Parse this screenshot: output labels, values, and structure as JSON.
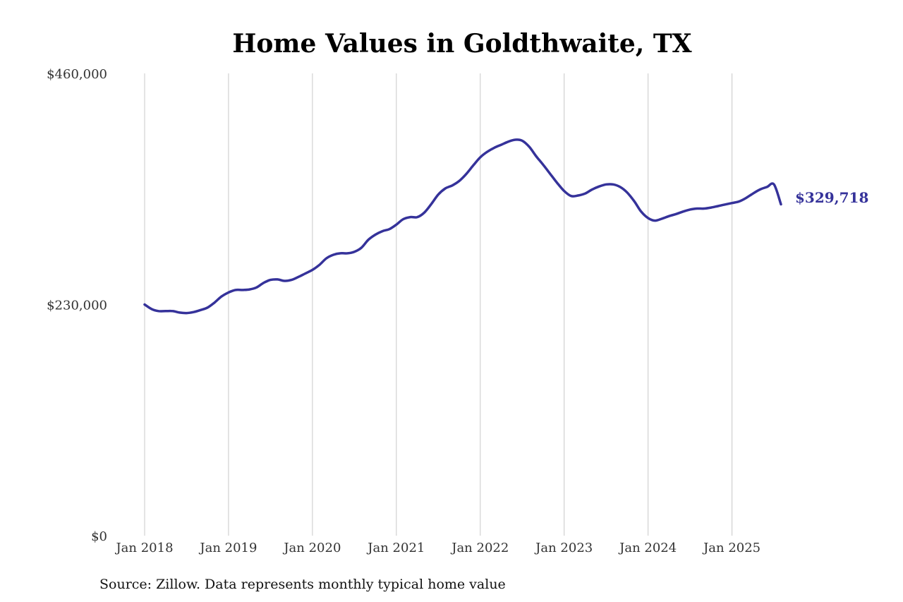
{
  "chart_data": {
    "type": "line",
    "title": "Home Values in Goldthwaite, TX",
    "xlabel": "",
    "ylabel": "",
    "x_ticks": [
      "Jan 2018",
      "Jan 2019",
      "Jan 2020",
      "Jan 2021",
      "Jan 2022",
      "Jan 2023",
      "Jan 2024",
      "Jan 2025"
    ],
    "y_ticks": [
      "$0",
      "$230,000",
      "$460,000"
    ],
    "ylim": [
      0,
      460000
    ],
    "xlim": [
      "2018-01",
      "2025-08"
    ],
    "grid": {
      "vertical": true,
      "horizontal": false
    },
    "line_color": "#35329a",
    "end_label": "$329,718",
    "series": [
      {
        "points": [
          [
            "2018-01",
            230000
          ],
          [
            "2018-02",
            225500
          ],
          [
            "2018-03",
            223500
          ],
          [
            "2018-04",
            223500
          ],
          [
            "2018-05",
            223500
          ],
          [
            "2018-06",
            222000
          ],
          [
            "2018-07",
            221500
          ],
          [
            "2018-08",
            222500
          ],
          [
            "2018-09",
            224500
          ],
          [
            "2018-10",
            227000
          ],
          [
            "2018-11",
            232000
          ],
          [
            "2018-12",
            238000
          ],
          [
            "2019-01",
            242000
          ],
          [
            "2019-02",
            244500
          ],
          [
            "2019-03",
            244500
          ],
          [
            "2019-04",
            245000
          ],
          [
            "2019-05",
            247000
          ],
          [
            "2019-06",
            251500
          ],
          [
            "2019-07",
            254500
          ],
          [
            "2019-08",
            255000
          ],
          [
            "2019-09",
            253500
          ],
          [
            "2019-10",
            254500
          ],
          [
            "2019-11",
            257500
          ],
          [
            "2019-12",
            261000
          ],
          [
            "2020-01",
            264500
          ],
          [
            "2020-02",
            269500
          ],
          [
            "2020-03",
            276000
          ],
          [
            "2020-04",
            279500
          ],
          [
            "2020-05",
            281000
          ],
          [
            "2020-06",
            281000
          ],
          [
            "2020-07",
            282500
          ],
          [
            "2020-08",
            286500
          ],
          [
            "2020-09",
            294500
          ],
          [
            "2020-10",
            299500
          ],
          [
            "2020-11",
            303000
          ],
          [
            "2020-12",
            305000
          ],
          [
            "2021-01",
            309500
          ],
          [
            "2021-02",
            315000
          ],
          [
            "2021-03",
            317000
          ],
          [
            "2021-04",
            317000
          ],
          [
            "2021-05",
            321500
          ],
          [
            "2021-06",
            330000
          ],
          [
            "2021-07",
            339500
          ],
          [
            "2021-08",
            345500
          ],
          [
            "2021-09",
            348500
          ],
          [
            "2021-10",
            353000
          ],
          [
            "2021-11",
            360000
          ],
          [
            "2021-12",
            368500
          ],
          [
            "2022-01",
            376500
          ],
          [
            "2022-02",
            382000
          ],
          [
            "2022-03",
            386000
          ],
          [
            "2022-04",
            389000
          ],
          [
            "2022-05",
            392000
          ],
          [
            "2022-06",
            394000
          ],
          [
            "2022-07",
            393000
          ],
          [
            "2022-08",
            387000
          ],
          [
            "2022-09",
            377500
          ],
          [
            "2022-10",
            369000
          ],
          [
            "2022-11",
            360000
          ],
          [
            "2022-12",
            351000
          ],
          [
            "2023-01",
            343000
          ],
          [
            "2023-02",
            338000
          ],
          [
            "2023-03",
            338500
          ],
          [
            "2023-04",
            340500
          ],
          [
            "2023-05",
            344500
          ],
          [
            "2023-06",
            347500
          ],
          [
            "2023-07",
            349500
          ],
          [
            "2023-08",
            349500
          ],
          [
            "2023-09",
            347000
          ],
          [
            "2023-10",
            341500
          ],
          [
            "2023-11",
            333000
          ],
          [
            "2023-12",
            322500
          ],
          [
            "2024-01",
            316000
          ],
          [
            "2024-02",
            313500
          ],
          [
            "2024-03",
            315500
          ],
          [
            "2024-04",
            318000
          ],
          [
            "2024-05",
            320000
          ],
          [
            "2024-06",
            322500
          ],
          [
            "2024-07",
            324500
          ],
          [
            "2024-08",
            325500
          ],
          [
            "2024-09",
            325500
          ],
          [
            "2024-10",
            326500
          ],
          [
            "2024-11",
            328000
          ],
          [
            "2024-12",
            329500
          ],
          [
            "2025-01",
            331000
          ],
          [
            "2025-02",
            332500
          ],
          [
            "2025-03",
            336000
          ],
          [
            "2025-04",
            340500
          ],
          [
            "2025-05",
            344500
          ],
          [
            "2025-06",
            347000
          ],
          [
            "2025-07",
            349500
          ],
          [
            "2025-08",
            329718
          ]
        ]
      }
    ]
  },
  "source": "Source: Zillow. Data represents monthly typical home value"
}
